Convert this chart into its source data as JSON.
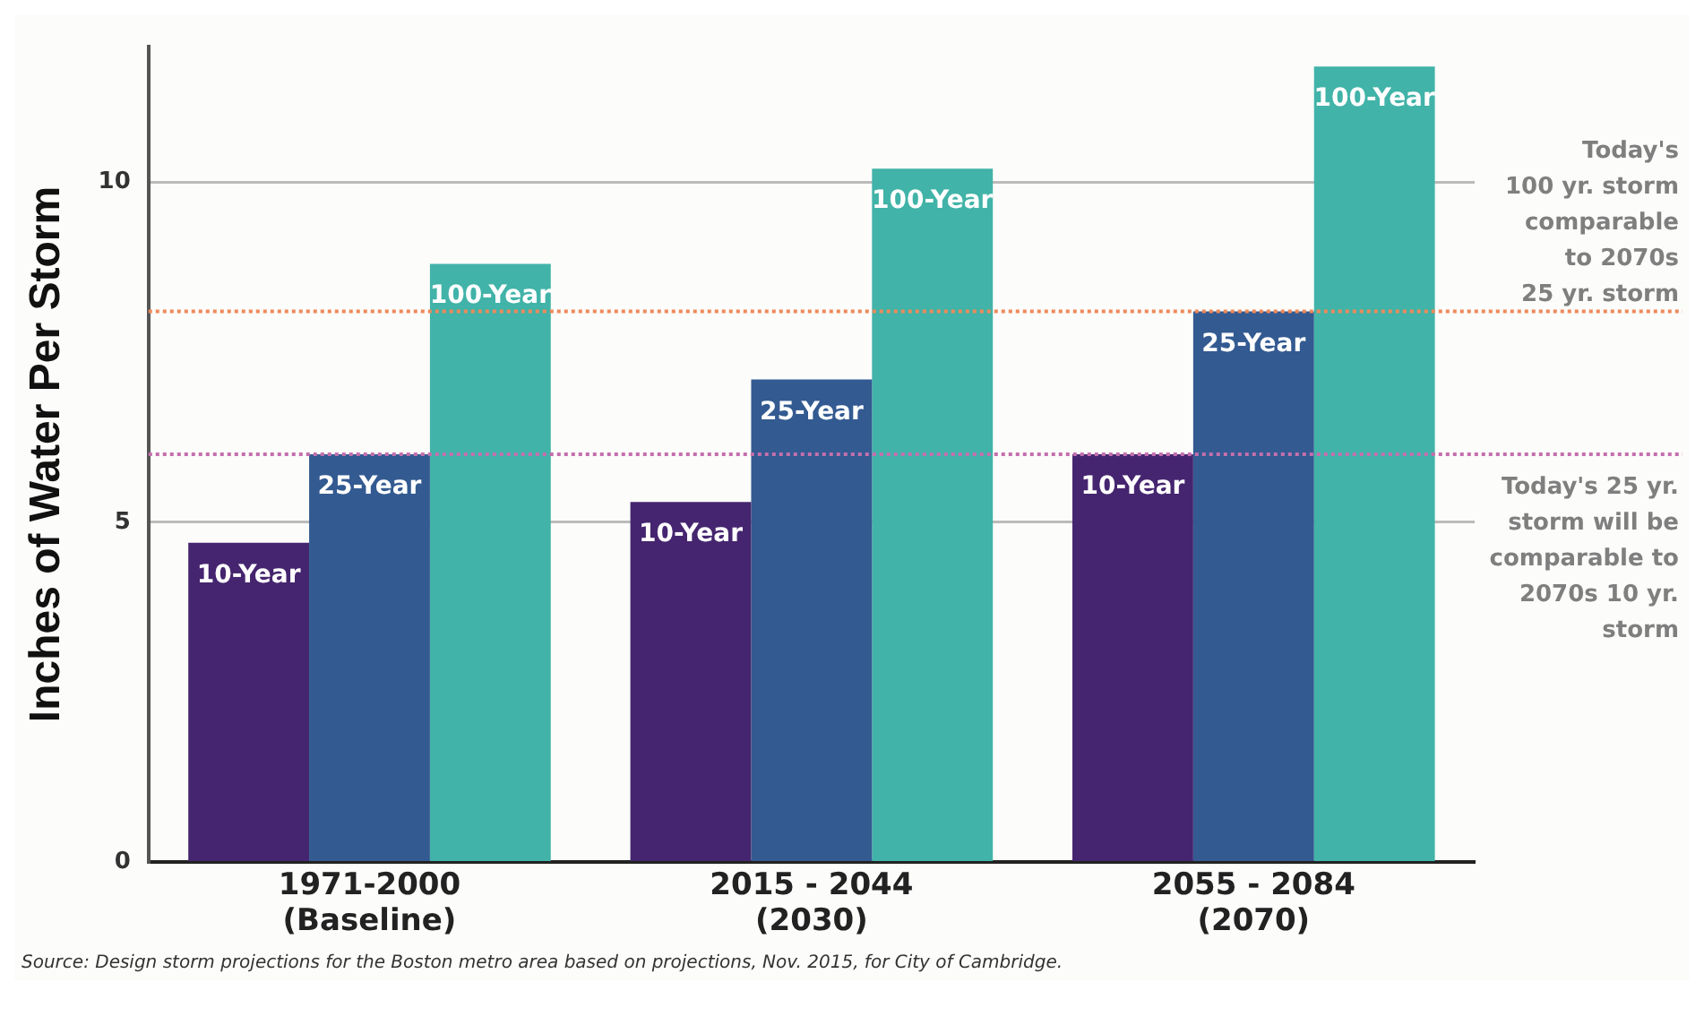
{
  "chart_data": {
    "type": "bar",
    "ylabel": "Inches of Water Per Storm",
    "categories": [
      "1971-2000\n(Baseline)",
      "2015 - 2044\n(2030)",
      "2055 - 2084\n(2070)"
    ],
    "series": [
      {
        "name": "10-Year",
        "color": "#45256f",
        "values": [
          4.7,
          5.3,
          6.0
        ]
      },
      {
        "name": "25-Year",
        "color": "#335a91",
        "values": [
          6.0,
          7.1,
          8.1
        ]
      },
      {
        "name": "100-Year",
        "color": "#41b3a8",
        "values": [
          8.8,
          10.2,
          11.7
        ]
      }
    ],
    "ylim": [
      0,
      12
    ],
    "yticks": [
      0,
      5,
      10
    ],
    "grid": "y",
    "legend": false,
    "ref_lines": [
      {
        "axis": "y",
        "value": 8.1,
        "label": "Today's\n100 yr. storm\ncomparable\nto 2070s\n25 yr. storm",
        "color": "#ee8a5a",
        "line_style": "dotted"
      },
      {
        "axis": "y",
        "value": 6.0,
        "label": "Today's 25 yr.\nstorm will be\ncomparable to\n2070s 10 yr.\nstorm",
        "color": "#c46fae",
        "line_style": "dotted"
      }
    ],
    "annotations": [
      "Source: Design storm projections for the Boston metro area based on projections, Nov. 2015, for City of Cambridge."
    ]
  }
}
